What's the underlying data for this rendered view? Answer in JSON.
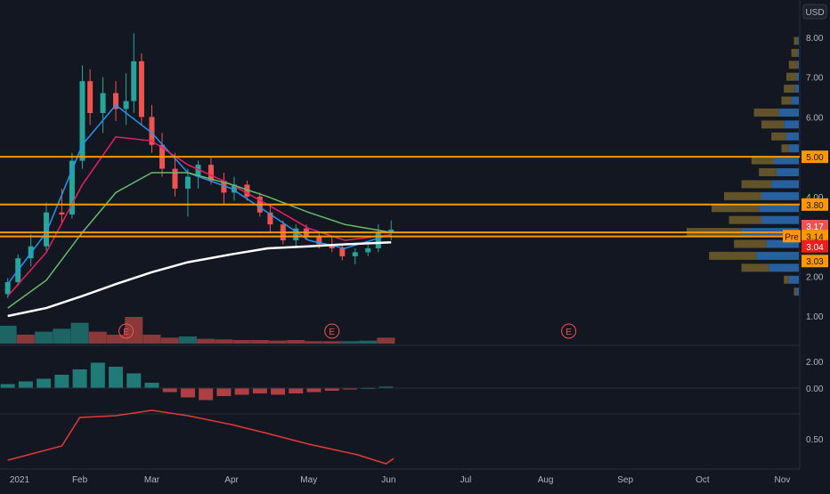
{
  "currency": "USD",
  "colors": {
    "background": "#131722",
    "grid": "#1e222d",
    "up": "#26a69a",
    "down": "#ef5350",
    "sma_fast": "#2196f3",
    "sma_mid": "#e91e63",
    "sma_slow": "#66bb6a",
    "sma_long": "#ffffff",
    "level_line": "#ff9800",
    "volume_profile_up": "#2a6db5",
    "volume_profile_down": "#6b5a2a",
    "rsi_line": "#e53935"
  },
  "x_axis_labels": [
    "2021",
    "Feb",
    "Mar",
    "Apr",
    "May",
    "Jun",
    "Jul",
    "Aug",
    "Sep",
    "Oct",
    "Nov"
  ],
  "price_axis_ticks": [
    "8.00",
    "7.00",
    "6.00",
    "5.00",
    "4.00",
    "3.00",
    "2.00",
    "1.00"
  ],
  "macd_axis_ticks": [
    "2.00",
    "0.00"
  ],
  "rsi_axis_ticks": [
    "0.50"
  ],
  "price_tags": [
    {
      "label": "5.00",
      "kind": "level",
      "color": "#ff9800",
      "text_color": "#131722"
    },
    {
      "label": "3.80",
      "kind": "level",
      "color": "#ff9800",
      "text_color": "#131722"
    },
    {
      "label": "3.17",
      "kind": "last",
      "color": "#ef5350",
      "text_color": "#ffffff"
    },
    {
      "label": "3.14",
      "kind": "pre",
      "prefix": "Pre",
      "color": "#ff9800",
      "text_color": "#131722"
    },
    {
      "label": "3.04",
      "kind": "ma",
      "color": "#e91e1e",
      "text_color": "#ffffff"
    },
    {
      "label": "3.03",
      "kind": "ma",
      "color": "#ff9800",
      "text_color": "#131722"
    }
  ],
  "earnings_markers": [
    {
      "label": "E",
      "date": "2021-02-19"
    },
    {
      "label": "E",
      "date": "2021-05-10"
    },
    {
      "label": "E",
      "date": "2021-08-10"
    }
  ],
  "chart_data": {
    "type": "candlestick",
    "x_range": [
      "2021-01-01",
      "2021-11-05"
    ],
    "price_range": [
      0.6,
      8.3
    ],
    "horizontal_levels": [
      5.0,
      3.8,
      3.1,
      3.0
    ],
    "candles": [
      {
        "date": "2021-01-04",
        "o": 1.55,
        "h": 1.95,
        "l": 1.45,
        "c": 1.85
      },
      {
        "date": "2021-01-08",
        "o": 1.85,
        "h": 2.55,
        "l": 1.75,
        "c": 2.45
      },
      {
        "date": "2021-01-13",
        "o": 2.45,
        "h": 3.05,
        "l": 2.25,
        "c": 2.75
      },
      {
        "date": "2021-01-19",
        "o": 2.75,
        "h": 3.85,
        "l": 2.65,
        "c": 3.6
      },
      {
        "date": "2021-01-25",
        "o": 3.6,
        "h": 4.2,
        "l": 3.3,
        "c": 3.55
      },
      {
        "date": "2021-01-29",
        "o": 3.55,
        "h": 5.1,
        "l": 3.45,
        "c": 4.9
      },
      {
        "date": "2021-02-02",
        "o": 4.9,
        "h": 7.3,
        "l": 4.7,
        "c": 6.9
      },
      {
        "date": "2021-02-05",
        "o": 6.9,
        "h": 7.2,
        "l": 5.8,
        "c": 6.1
      },
      {
        "date": "2021-02-10",
        "o": 6.1,
        "h": 7.0,
        "l": 5.6,
        "c": 6.6
      },
      {
        "date": "2021-02-15",
        "o": 6.6,
        "h": 6.9,
        "l": 5.9,
        "c": 6.2
      },
      {
        "date": "2021-02-19",
        "o": 6.2,
        "h": 7.1,
        "l": 5.8,
        "c": 6.4
      },
      {
        "date": "2021-02-22",
        "o": 6.4,
        "h": 8.1,
        "l": 6.1,
        "c": 7.4
      },
      {
        "date": "2021-02-25",
        "o": 7.4,
        "h": 7.6,
        "l": 5.8,
        "c": 6.0
      },
      {
        "date": "2021-03-01",
        "o": 6.0,
        "h": 6.3,
        "l": 5.1,
        "c": 5.3
      },
      {
        "date": "2021-03-05",
        "o": 5.3,
        "h": 5.6,
        "l": 4.5,
        "c": 4.7
      },
      {
        "date": "2021-03-10",
        "o": 4.7,
        "h": 5.1,
        "l": 4.0,
        "c": 4.2
      },
      {
        "date": "2021-03-15",
        "o": 4.2,
        "h": 4.7,
        "l": 3.5,
        "c": 4.5
      },
      {
        "date": "2021-03-19",
        "o": 4.5,
        "h": 4.9,
        "l": 4.2,
        "c": 4.8
      },
      {
        "date": "2021-03-24",
        "o": 4.8,
        "h": 5.0,
        "l": 4.3,
        "c": 4.4
      },
      {
        "date": "2021-03-29",
        "o": 4.4,
        "h": 4.6,
        "l": 3.8,
        "c": 4.1
      },
      {
        "date": "2021-04-02",
        "o": 4.1,
        "h": 4.5,
        "l": 3.9,
        "c": 4.3
      },
      {
        "date": "2021-04-07",
        "o": 4.3,
        "h": 4.4,
        "l": 3.9,
        "c": 4.0
      },
      {
        "date": "2021-04-12",
        "o": 4.0,
        "h": 4.1,
        "l": 3.5,
        "c": 3.6
      },
      {
        "date": "2021-04-16",
        "o": 3.6,
        "h": 3.8,
        "l": 3.1,
        "c": 3.3
      },
      {
        "date": "2021-04-21",
        "o": 3.3,
        "h": 3.4,
        "l": 2.8,
        "c": 2.9
      },
      {
        "date": "2021-04-26",
        "o": 2.9,
        "h": 3.3,
        "l": 2.7,
        "c": 3.2
      },
      {
        "date": "2021-04-30",
        "o": 3.2,
        "h": 3.3,
        "l": 2.9,
        "c": 3.0
      },
      {
        "date": "2021-05-05",
        "o": 3.0,
        "h": 3.1,
        "l": 2.7,
        "c": 2.8
      },
      {
        "date": "2021-05-10",
        "o": 2.8,
        "h": 3.0,
        "l": 2.6,
        "c": 2.7
      },
      {
        "date": "2021-05-14",
        "o": 2.7,
        "h": 2.8,
        "l": 2.4,
        "c": 2.5
      },
      {
        "date": "2021-05-19",
        "o": 2.5,
        "h": 2.7,
        "l": 2.3,
        "c": 2.6
      },
      {
        "date": "2021-05-24",
        "o": 2.6,
        "h": 2.8,
        "l": 2.5,
        "c": 2.7
      },
      {
        "date": "2021-05-28",
        "o": 2.7,
        "h": 3.3,
        "l": 2.6,
        "c": 3.1
      },
      {
        "date": "2021-06-02",
        "o": 3.1,
        "h": 3.4,
        "l": 2.9,
        "c": 3.17
      }
    ],
    "series": [
      {
        "x": [
          "2021-01-04",
          "2021-01-19",
          "2021-02-02",
          "2021-02-15",
          "2021-03-01",
          "2021-03-15",
          "2021-04-01",
          "2021-04-15",
          "2021-05-01",
          "2021-05-15",
          "2021-06-02"
        ],
        "values": [
          1.8,
          3.1,
          5.3,
          6.3,
          5.6,
          4.6,
          4.2,
          3.6,
          2.9,
          2.7,
          3.05
        ]
      },
      {
        "x": [
          "2021-01-04",
          "2021-01-19",
          "2021-02-02",
          "2021-02-15",
          "2021-03-01",
          "2021-03-15",
          "2021-04-01",
          "2021-04-15",
          "2021-05-01",
          "2021-05-15",
          "2021-06-02"
        ],
        "values": [
          1.5,
          2.6,
          4.3,
          5.5,
          5.4,
          4.8,
          4.3,
          3.8,
          3.2,
          2.9,
          3.04
        ]
      },
      {
        "x": [
          "2021-01-04",
          "2021-01-19",
          "2021-02-02",
          "2021-02-15",
          "2021-03-01",
          "2021-03-15",
          "2021-04-01",
          "2021-04-15",
          "2021-05-01",
          "2021-05-15",
          "2021-06-02"
        ],
        "values": [
          1.2,
          1.9,
          3.1,
          4.1,
          4.6,
          4.6,
          4.3,
          4.0,
          3.6,
          3.3,
          3.1
        ]
      },
      {
        "x": [
          "2021-01-04",
          "2021-01-19",
          "2021-02-02",
          "2021-02-15",
          "2021-03-01",
          "2021-03-15",
          "2021-04-01",
          "2021-04-15",
          "2021-05-01",
          "2021-05-15",
          "2021-06-02"
        ],
        "values": [
          1.0,
          1.2,
          1.5,
          1.8,
          2.1,
          2.35,
          2.55,
          2.7,
          2.75,
          2.8,
          2.85
        ]
      }
    ],
    "volume": {
      "dates": [
        "2021-01-04",
        "2021-01-11",
        "2021-01-18",
        "2021-01-25",
        "2021-02-01",
        "2021-02-08",
        "2021-02-15",
        "2021-02-22",
        "2021-03-01",
        "2021-03-08",
        "2021-03-15",
        "2021-03-22",
        "2021-03-29",
        "2021-04-05",
        "2021-04-12",
        "2021-04-19",
        "2021-04-26",
        "2021-05-03",
        "2021-05-10",
        "2021-05-17",
        "2021-05-24",
        "2021-05-31"
      ],
      "values": [
        3,
        1.5,
        2,
        2.5,
        3.5,
        2,
        1.5,
        4.5,
        1.5,
        1,
        1.2,
        0.8,
        0.7,
        0.6,
        0.6,
        0.5,
        0.6,
        0.4,
        0.4,
        0.4,
        0.5,
        1.0
      ],
      "up": [
        true,
        false,
        true,
        true,
        true,
        false,
        false,
        false,
        false,
        false,
        true,
        false,
        false,
        false,
        false,
        false,
        false,
        false,
        false,
        true,
        true,
        false
      ]
    },
    "macd_histogram": {
      "dates": [
        "2021-01-04",
        "2021-01-11",
        "2021-01-18",
        "2021-01-25",
        "2021-02-01",
        "2021-02-08",
        "2021-02-15",
        "2021-02-22",
        "2021-03-01",
        "2021-03-08",
        "2021-03-15",
        "2021-03-22",
        "2021-03-29",
        "2021-04-05",
        "2021-04-12",
        "2021-04-19",
        "2021-04-26",
        "2021-05-03",
        "2021-05-10",
        "2021-05-17",
        "2021-05-24",
        "2021-05-31"
      ],
      "values": [
        0.3,
        0.5,
        0.7,
        1.0,
        1.4,
        1.9,
        1.6,
        1.1,
        0.4,
        -0.3,
        -0.7,
        -0.9,
        -0.6,
        -0.5,
        -0.4,
        -0.5,
        -0.4,
        -0.3,
        -0.2,
        -0.1,
        0.0,
        0.1
      ]
    },
    "rsi_like": {
      "x": [
        "2021-01-04",
        "2021-01-25",
        "2021-02-01",
        "2021-02-15",
        "2021-03-01",
        "2021-03-15",
        "2021-04-01",
        "2021-04-15",
        "2021-05-01",
        "2021-05-20",
        "2021-05-31",
        "2021-06-03"
      ],
      "values": [
        0.38,
        0.46,
        0.62,
        0.63,
        0.66,
        0.63,
        0.58,
        0.53,
        0.47,
        0.41,
        0.36,
        0.39
      ]
    },
    "volume_profile": [
      {
        "price": 7.9,
        "up": 0.01,
        "down": 0.04
      },
      {
        "price": 7.6,
        "up": 0.01,
        "down": 0.06
      },
      {
        "price": 7.3,
        "up": 0.01,
        "down": 0.08
      },
      {
        "price": 7.0,
        "up": 0.02,
        "down": 0.1
      },
      {
        "price": 6.7,
        "up": 0.03,
        "down": 0.12
      },
      {
        "price": 6.4,
        "up": 0.06,
        "down": 0.14
      },
      {
        "price": 6.1,
        "up": 0.16,
        "down": 0.36
      },
      {
        "price": 5.8,
        "up": 0.12,
        "down": 0.3
      },
      {
        "price": 5.5,
        "up": 0.1,
        "down": 0.22
      },
      {
        "price": 5.2,
        "up": 0.08,
        "down": 0.14
      },
      {
        "price": 4.9,
        "up": 0.2,
        "down": 0.38
      },
      {
        "price": 4.6,
        "up": 0.18,
        "down": 0.32
      },
      {
        "price": 4.3,
        "up": 0.22,
        "down": 0.46
      },
      {
        "price": 4.0,
        "up": 0.3,
        "down": 0.6
      },
      {
        "price": 3.7,
        "up": 0.32,
        "down": 0.7
      },
      {
        "price": 3.4,
        "up": 0.3,
        "down": 0.56
      },
      {
        "price": 3.1,
        "up": 0.46,
        "down": 0.9
      },
      {
        "price": 2.8,
        "up": 0.26,
        "down": 0.52
      },
      {
        "price": 2.5,
        "up": 0.34,
        "down": 0.72
      },
      {
        "price": 2.2,
        "up": 0.24,
        "down": 0.46
      },
      {
        "price": 1.9,
        "up": 0.08,
        "down": 0.12
      },
      {
        "price": 1.6,
        "up": 0.02,
        "down": 0.04
      }
    ]
  }
}
